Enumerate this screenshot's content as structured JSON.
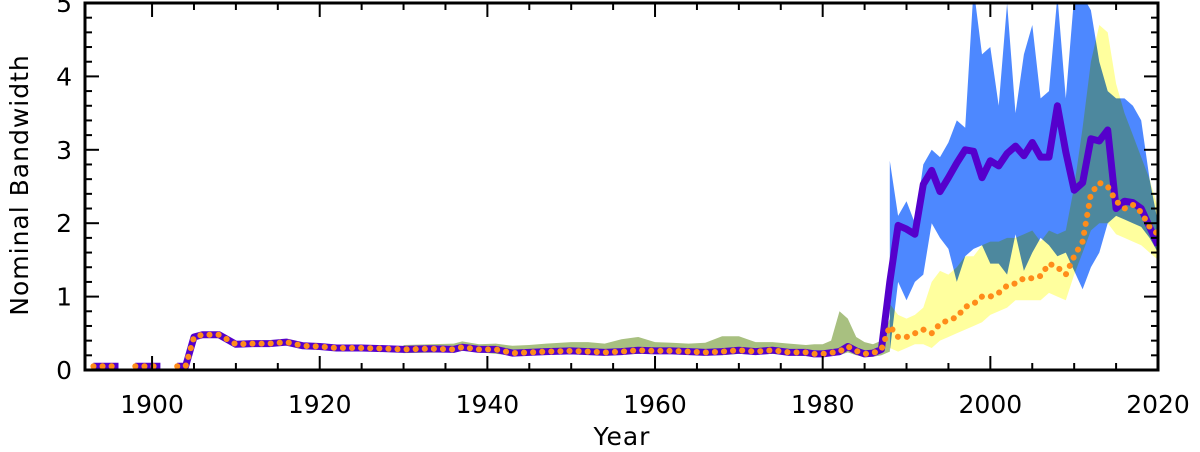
{
  "chart_data": {
    "type": "line",
    "title": "",
    "xlabel": "Year",
    "ylabel": "Nominal Bandwidth",
    "xlim": [
      1892,
      2020
    ],
    "ylim": [
      0,
      5
    ],
    "x_ticks": [
      "1900",
      "1920",
      "1940",
      "1960",
      "1980",
      "2000",
      "2020"
    ],
    "y_ticks": [
      "0",
      "1",
      "2",
      "3",
      "4",
      "5"
    ],
    "grid": false,
    "legend": "none",
    "series": [
      {
        "color": "#5500cc",
        "style": "solid thick line",
        "band_color": "#4d88ff",
        "points": [
          [
            1893,
            0.05
          ],
          [
            1894,
            0.05
          ],
          [
            1895,
            0.05
          ],
          [
            1896,
            0.05
          ],
          [
            1898,
            0.05
          ],
          [
            1899,
            0.05
          ],
          [
            1900,
            0.05
          ],
          [
            1901,
            0.05
          ],
          [
            1903,
            0.05
          ],
          [
            1904,
            0.05
          ],
          [
            1905,
            0.45
          ],
          [
            1906,
            0.48
          ],
          [
            1907,
            0.48
          ],
          [
            1908,
            0.48
          ],
          [
            1910,
            0.35
          ],
          [
            1912,
            0.36
          ],
          [
            1914,
            0.36
          ],
          [
            1916,
            0.38
          ],
          [
            1918,
            0.33
          ],
          [
            1920,
            0.32
          ],
          [
            1922,
            0.3
          ],
          [
            1925,
            0.3
          ],
          [
            1928,
            0.29
          ],
          [
            1930,
            0.28
          ],
          [
            1933,
            0.29
          ],
          [
            1936,
            0.28
          ],
          [
            1937,
            0.31
          ],
          [
            1939,
            0.28
          ],
          [
            1941,
            0.28
          ],
          [
            1943,
            0.23
          ],
          [
            1945,
            0.24
          ],
          [
            1947,
            0.25
          ],
          [
            1950,
            0.26
          ],
          [
            1952,
            0.25
          ],
          [
            1954,
            0.24
          ],
          [
            1956,
            0.25
          ],
          [
            1958,
            0.27
          ],
          [
            1960,
            0.26
          ],
          [
            1962,
            0.26
          ],
          [
            1964,
            0.25
          ],
          [
            1966,
            0.24
          ],
          [
            1968,
            0.25
          ],
          [
            1970,
            0.27
          ],
          [
            1972,
            0.25
          ],
          [
            1974,
            0.27
          ],
          [
            1976,
            0.24
          ],
          [
            1978,
            0.24
          ],
          [
            1979,
            0.22
          ],
          [
            1980,
            0.22
          ],
          [
            1982,
            0.25
          ],
          [
            1983,
            0.32
          ],
          [
            1984,
            0.26
          ],
          [
            1985,
            0.22
          ],
          [
            1986,
            0.23
          ],
          [
            1987,
            0.28
          ],
          [
            1988,
            1.2
          ],
          [
            1989,
            1.97
          ],
          [
            1990,
            1.92
          ],
          [
            1991,
            1.85
          ],
          [
            1992,
            2.53
          ],
          [
            1993,
            2.72
          ],
          [
            1994,
            2.43
          ],
          [
            1995,
            2.62
          ],
          [
            1996,
            2.82
          ],
          [
            1997,
            3.0
          ],
          [
            1998,
            2.98
          ],
          [
            1999,
            2.62
          ],
          [
            2000,
            2.85
          ],
          [
            2001,
            2.78
          ],
          [
            2002,
            2.95
          ],
          [
            2003,
            3.05
          ],
          [
            2004,
            2.92
          ],
          [
            2005,
            3.1
          ],
          [
            2006,
            2.9
          ],
          [
            2007,
            2.9
          ],
          [
            2008,
            3.6
          ],
          [
            2009,
            2.97
          ],
          [
            2010,
            2.45
          ],
          [
            2011,
            2.55
          ],
          [
            2012,
            3.15
          ],
          [
            2013,
            3.12
          ],
          [
            2014,
            3.27
          ],
          [
            2015,
            2.2
          ],
          [
            2016,
            2.3
          ],
          [
            2017,
            2.28
          ],
          [
            2018,
            2.2
          ],
          [
            2019,
            1.95
          ],
          [
            2020,
            1.7
          ]
        ],
        "band": [
          [
            1988,
            0.25,
            2.85
          ],
          [
            1989,
            1.2,
            2.1
          ],
          [
            1990,
            0.95,
            2.3
          ],
          [
            1991,
            1.2,
            2.0
          ],
          [
            1992,
            1.3,
            2.8
          ],
          [
            1993,
            2.0,
            3.0
          ],
          [
            1994,
            1.8,
            2.9
          ],
          [
            1995,
            1.65,
            3.1
          ],
          [
            1996,
            1.2,
            3.4
          ],
          [
            1997,
            1.55,
            3.3
          ],
          [
            1998,
            1.65,
            5.2
          ],
          [
            1999,
            1.7,
            4.3
          ],
          [
            2000,
            1.45,
            4.4
          ],
          [
            2001,
            1.45,
            3.6
          ],
          [
            2002,
            1.3,
            5.0
          ],
          [
            2003,
            1.85,
            3.5
          ],
          [
            2004,
            1.35,
            4.3
          ],
          [
            2005,
            1.6,
            4.7
          ],
          [
            2006,
            1.8,
            3.7
          ],
          [
            2007,
            1.7,
            3.8
          ],
          [
            2008,
            1.55,
            5.1
          ],
          [
            2009,
            1.6,
            3.7
          ],
          [
            2010,
            1.35,
            5.1
          ],
          [
            2011,
            1.1,
            5.1
          ],
          [
            2012,
            1.4,
            4.9
          ],
          [
            2013,
            1.6,
            4.2
          ],
          [
            2014,
            2.0,
            3.8
          ],
          [
            2015,
            2.1,
            3.7
          ],
          [
            2016,
            2.05,
            3.7
          ],
          [
            2017,
            2.0,
            3.6
          ],
          [
            2018,
            1.95,
            3.4
          ],
          [
            2019,
            1.8,
            2.6
          ],
          [
            2020,
            1.6,
            2.0
          ]
        ]
      },
      {
        "color": "#ff8c1a",
        "style": "dotted thick line",
        "band_color": "#ffff99",
        "points": [
          [
            1893,
            0.05
          ],
          [
            1894,
            0.05
          ],
          [
            1895,
            0.05
          ],
          [
            1896,
            0.05
          ],
          [
            1898,
            0.05
          ],
          [
            1899,
            0.05
          ],
          [
            1900,
            0.05
          ],
          [
            1901,
            0.05
          ],
          [
            1903,
            0.05
          ],
          [
            1904,
            0.05
          ],
          [
            1905,
            0.45
          ],
          [
            1906,
            0.48
          ],
          [
            1907,
            0.48
          ],
          [
            1908,
            0.48
          ],
          [
            1910,
            0.35
          ],
          [
            1912,
            0.36
          ],
          [
            1914,
            0.36
          ],
          [
            1916,
            0.38
          ],
          [
            1918,
            0.33
          ],
          [
            1920,
            0.32
          ],
          [
            1922,
            0.3
          ],
          [
            1925,
            0.3
          ],
          [
            1928,
            0.29
          ],
          [
            1930,
            0.28
          ],
          [
            1933,
            0.29
          ],
          [
            1936,
            0.28
          ],
          [
            1937,
            0.31
          ],
          [
            1939,
            0.28
          ],
          [
            1941,
            0.28
          ],
          [
            1943,
            0.23
          ],
          [
            1945,
            0.24
          ],
          [
            1947,
            0.25
          ],
          [
            1950,
            0.26
          ],
          [
            1952,
            0.25
          ],
          [
            1954,
            0.24
          ],
          [
            1956,
            0.25
          ],
          [
            1958,
            0.27
          ],
          [
            1960,
            0.26
          ],
          [
            1962,
            0.26
          ],
          [
            1964,
            0.25
          ],
          [
            1966,
            0.24
          ],
          [
            1968,
            0.25
          ],
          [
            1970,
            0.27
          ],
          [
            1972,
            0.25
          ],
          [
            1974,
            0.27
          ],
          [
            1976,
            0.24
          ],
          [
            1978,
            0.24
          ],
          [
            1979,
            0.22
          ],
          [
            1980,
            0.22
          ],
          [
            1982,
            0.25
          ],
          [
            1983,
            0.32
          ],
          [
            1984,
            0.26
          ],
          [
            1985,
            0.22
          ],
          [
            1986,
            0.23
          ],
          [
            1987,
            0.28
          ],
          [
            1988,
            0.6
          ],
          [
            1989,
            0.45
          ],
          [
            1990,
            0.45
          ],
          [
            1991,
            0.5
          ],
          [
            1992,
            0.55
          ],
          [
            1993,
            0.5
          ],
          [
            1994,
            0.63
          ],
          [
            1995,
            0.68
          ],
          [
            1996,
            0.72
          ],
          [
            1997,
            0.86
          ],
          [
            1998,
            0.9
          ],
          [
            1999,
            1.0
          ],
          [
            2000,
            1.0
          ],
          [
            2001,
            1.05
          ],
          [
            2002,
            1.15
          ],
          [
            2003,
            1.18
          ],
          [
            2004,
            1.25
          ],
          [
            2005,
            1.25
          ],
          [
            2006,
            1.28
          ],
          [
            2007,
            1.45
          ],
          [
            2008,
            1.4
          ],
          [
            2009,
            1.3
          ],
          [
            2010,
            1.55
          ],
          [
            2011,
            1.75
          ],
          [
            2012,
            2.4
          ],
          [
            2013,
            2.55
          ],
          [
            2014,
            2.5
          ],
          [
            2015,
            2.3
          ],
          [
            2016,
            2.2
          ],
          [
            2017,
            2.25
          ],
          [
            2018,
            2.15
          ],
          [
            2019,
            1.95
          ],
          [
            2020,
            1.85
          ]
        ],
        "band": [
          [
            1988,
            0.3,
            0.9
          ],
          [
            1989,
            0.25,
            0.75
          ],
          [
            1990,
            0.3,
            0.7
          ],
          [
            1991,
            0.35,
            0.75
          ],
          [
            1992,
            0.35,
            0.85
          ],
          [
            1993,
            0.3,
            1.2
          ],
          [
            1994,
            0.4,
            1.35
          ],
          [
            1995,
            0.45,
            1.3
          ],
          [
            1996,
            0.5,
            1.4
          ],
          [
            1997,
            0.55,
            1.55
          ],
          [
            1998,
            0.6,
            1.55
          ],
          [
            1999,
            0.65,
            1.7
          ],
          [
            2000,
            0.75,
            1.75
          ],
          [
            2001,
            0.8,
            1.75
          ],
          [
            2002,
            0.85,
            1.8
          ],
          [
            2003,
            0.95,
            1.8
          ],
          [
            2004,
            0.95,
            1.85
          ],
          [
            2005,
            0.95,
            1.9
          ],
          [
            2006,
            0.95,
            1.75
          ],
          [
            2007,
            1.05,
            1.9
          ],
          [
            2008,
            1.0,
            1.85
          ],
          [
            2009,
            0.95,
            1.9
          ],
          [
            2010,
            1.3,
            2.5
          ],
          [
            2011,
            1.6,
            3.3
          ],
          [
            2012,
            1.9,
            4.2
          ],
          [
            2013,
            2.0,
            4.7
          ],
          [
            2014,
            2.0,
            4.6
          ],
          [
            2015,
            1.85,
            3.9
          ],
          [
            2016,
            1.8,
            3.5
          ],
          [
            2017,
            1.75,
            3.2
          ],
          [
            2018,
            1.7,
            2.9
          ],
          [
            2019,
            1.6,
            2.6
          ],
          [
            2020,
            1.5,
            2.2
          ]
        ],
        "band_early": [
          [
            1930,
            0.23,
            0.34
          ],
          [
            1936,
            0.24,
            0.36
          ],
          [
            1937,
            0.26,
            0.39
          ],
          [
            1939,
            0.24,
            0.35
          ],
          [
            1941,
            0.22,
            0.36
          ],
          [
            1943,
            0.2,
            0.33
          ],
          [
            1945,
            0.2,
            0.34
          ],
          [
            1947,
            0.21,
            0.36
          ],
          [
            1950,
            0.22,
            0.38
          ],
          [
            1952,
            0.21,
            0.38
          ],
          [
            1954,
            0.2,
            0.36
          ],
          [
            1956,
            0.21,
            0.42
          ],
          [
            1958,
            0.22,
            0.45
          ],
          [
            1960,
            0.22,
            0.38
          ],
          [
            1962,
            0.22,
            0.37
          ],
          [
            1964,
            0.21,
            0.36
          ],
          [
            1966,
            0.2,
            0.37
          ],
          [
            1968,
            0.2,
            0.46
          ],
          [
            1970,
            0.22,
            0.46
          ],
          [
            1972,
            0.21,
            0.38
          ],
          [
            1974,
            0.22,
            0.38
          ],
          [
            1976,
            0.2,
            0.36
          ],
          [
            1978,
            0.19,
            0.34
          ],
          [
            1979,
            0.18,
            0.35
          ],
          [
            1980,
            0.18,
            0.35
          ],
          [
            1981,
            0.2,
            0.4
          ],
          [
            1982,
            0.2,
            0.8
          ],
          [
            1983,
            0.24,
            0.7
          ],
          [
            1984,
            0.2,
            0.45
          ],
          [
            1985,
            0.18,
            0.38
          ],
          [
            1986,
            0.18,
            0.35
          ],
          [
            1987,
            0.2,
            0.4
          ],
          [
            1988,
            0.25,
            0.7
          ]
        ]
      }
    ],
    "overlap_color": "#a8c080"
  }
}
